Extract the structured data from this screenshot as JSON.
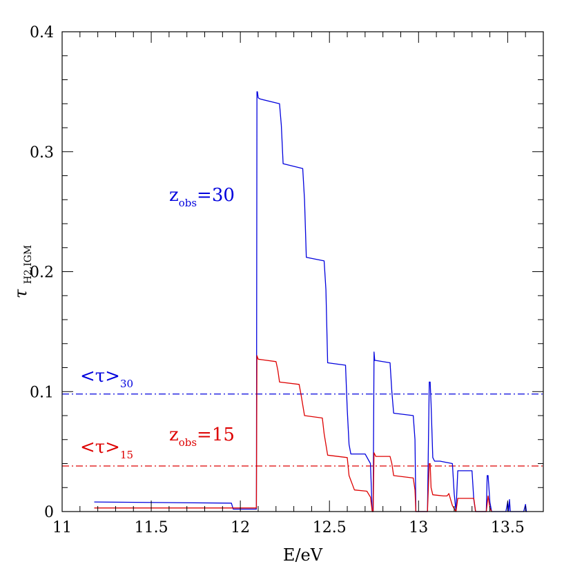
{
  "chart_data": {
    "type": "line",
    "title": "",
    "xlabel": "E/eV",
    "ylabel": {
      "main": "τ",
      "sub": "H2,IGM"
    },
    "xlim": [
      11,
      13.7
    ],
    "ylim": [
      0,
      0.4
    ],
    "x_major_ticks": [
      11,
      11.5,
      12,
      12.5,
      13,
      13.5
    ],
    "x_tick_labels": [
      "11",
      "11.5",
      "12",
      "12.5",
      "13",
      "13.5"
    ],
    "y_major_ticks": [
      0,
      0.1,
      0.2,
      0.3,
      0.4
    ],
    "y_tick_labels": [
      "0",
      "0.1",
      "0.2",
      "0.3",
      "0.4"
    ],
    "x_minor_step": 0.1,
    "y_minor_step": 0.02,
    "grid": false,
    "legend": "none",
    "series": [
      {
        "name": "z_obs=30",
        "color": "#0000dd",
        "x": [
          11.18,
          11.95,
          11.96,
          12.09,
          12.093,
          12.096,
          12.1,
          12.11,
          12.22,
          12.23,
          12.24,
          12.35,
          12.36,
          12.37,
          12.47,
          12.48,
          12.49,
          12.59,
          12.6,
          12.61,
          12.62,
          12.7,
          12.73,
          12.74,
          12.745,
          12.75,
          12.754,
          12.76,
          12.84,
          12.85,
          12.86,
          12.97,
          12.98,
          12.985,
          12.99,
          13.04,
          13.05,
          13.06,
          13.065,
          13.07,
          13.08,
          13.09,
          13.12,
          13.19,
          13.2,
          13.21,
          13.22,
          13.3,
          13.31,
          13.32,
          13.38,
          13.385,
          13.39,
          13.4,
          13.41,
          13.49,
          13.5,
          13.505,
          13.51,
          13.515,
          13.52,
          13.59,
          13.6,
          13.605,
          13.61
        ],
        "y": [
          0.008,
          0.007,
          0.002,
          0.002,
          0.35,
          0.35,
          0.345,
          0.344,
          0.34,
          0.322,
          0.29,
          0.286,
          0.26,
          0.212,
          0.209,
          0.185,
          0.124,
          0.122,
          0.085,
          0.056,
          0.048,
          0.048,
          0.04,
          0.0,
          0.0,
          0.133,
          0.126,
          0.126,
          0.124,
          0.1,
          0.082,
          0.08,
          0.06,
          0.0,
          0.0,
          0.0,
          0.0,
          0.108,
          0.108,
          0.09,
          0.045,
          0.042,
          0.042,
          0.04,
          0.015,
          0.0,
          0.034,
          0.034,
          0.01,
          0.0,
          0.0,
          0.03,
          0.03,
          0.008,
          0.0,
          0.0,
          0.008,
          0.0,
          0.01,
          0.0,
          0.0,
          0.0,
          0.006,
          0.0,
          0.0
        ]
      },
      {
        "name": "z_obs=15",
        "color": "#dd0000",
        "x": [
          11.18,
          12.09,
          12.093,
          12.1,
          12.2,
          12.21,
          12.22,
          12.33,
          12.34,
          12.36,
          12.46,
          12.47,
          12.49,
          12.6,
          12.61,
          12.64,
          12.71,
          12.73,
          12.74,
          12.745,
          12.75,
          12.76,
          12.84,
          12.85,
          12.86,
          12.97,
          12.98,
          12.985,
          12.99,
          13.05,
          13.06,
          13.065,
          13.07,
          13.08,
          13.14,
          13.16,
          13.17,
          13.19,
          13.21,
          13.22,
          13.31,
          13.32,
          13.38,
          13.39,
          13.4,
          13.41
        ],
        "y": [
          0.003,
          0.003,
          0.13,
          0.127,
          0.125,
          0.118,
          0.108,
          0.106,
          0.098,
          0.08,
          0.078,
          0.065,
          0.047,
          0.045,
          0.03,
          0.018,
          0.017,
          0.012,
          0.0,
          0.0,
          0.049,
          0.046,
          0.046,
          0.04,
          0.03,
          0.028,
          0.018,
          0.0,
          0.0,
          0.0,
          0.04,
          0.04,
          0.02,
          0.014,
          0.013,
          0.013,
          0.015,
          0.005,
          0.0,
          0.011,
          0.011,
          0.0,
          0.0,
          0.013,
          0.003,
          0.0
        ]
      }
    ],
    "reference_lines": [
      {
        "name": "<τ>_30",
        "y": 0.098,
        "color": "#0000dd",
        "style": "dash-dot"
      },
      {
        "name": "<τ>_15",
        "y": 0.038,
        "color": "#dd0000",
        "style": "dash-dot"
      }
    ],
    "annotations": [
      {
        "id": "z30",
        "base": "z",
        "sub": "obs",
        "rest": "=30",
        "color": "#0000dd"
      },
      {
        "id": "tau30",
        "base": "<τ>",
        "sub": "30",
        "rest": "",
        "color": "#0000dd"
      },
      {
        "id": "z15",
        "base": "z",
        "sub": "obs",
        "rest": "=15",
        "color": "#dd0000"
      },
      {
        "id": "tau15",
        "base": "<τ>",
        "sub": "15",
        "rest": "",
        "color": "#dd0000"
      }
    ]
  }
}
